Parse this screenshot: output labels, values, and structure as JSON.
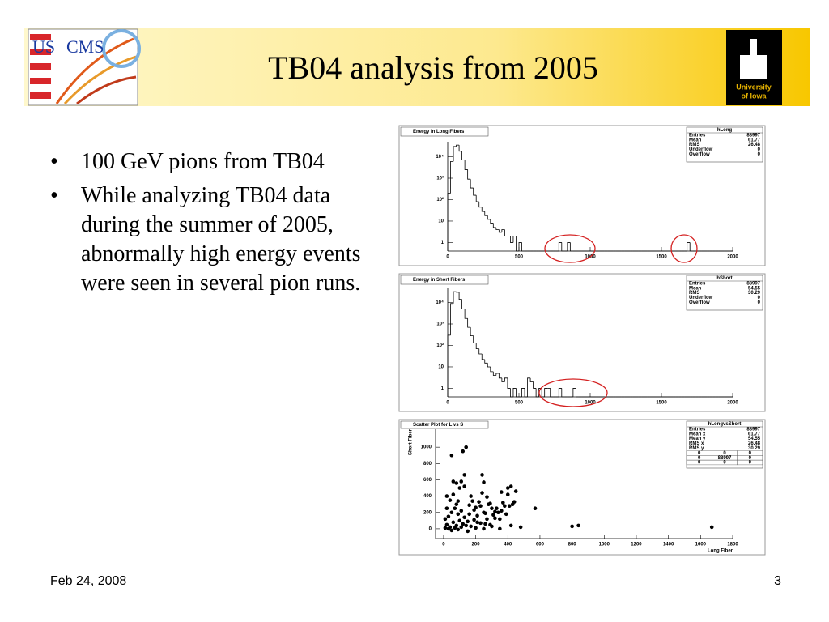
{
  "slide": {
    "title": "TB04 analysis from 2005",
    "bullets": [
      "100 GeV pions from TB04",
      "While analyzing TB04 data during the summer of 2005, abnormally high energy events were seen in several pion runs."
    ],
    "date": "Feb 24, 2008",
    "page": 3,
    "logo_left": [
      "US",
      "CMS"
    ],
    "logo_right": [
      "University",
      "of Iowa"
    ]
  },
  "chart_data": [
    {
      "type": "histogram",
      "title": "Energy in Long Fibers",
      "yscale": "log",
      "bins": [
        0,
        20,
        40,
        60,
        80,
        100,
        120,
        140,
        160,
        180,
        200,
        220,
        240,
        260,
        280,
        300,
        320,
        340,
        360,
        380,
        400,
        420,
        440,
        460,
        480,
        500,
        520,
        540,
        560,
        580,
        600,
        620,
        640,
        660,
        680,
        700,
        720,
        740,
        760,
        780,
        800,
        820,
        840,
        860,
        880,
        900,
        920,
        940,
        960,
        980,
        1000,
        1020,
        1040,
        1060,
        1080,
        1100,
        1120,
        1140,
        1160,
        1180,
        1200,
        1220,
        1240,
        1260,
        1280,
        1300,
        1320,
        1340,
        1360,
        1380,
        1400,
        1420,
        1440,
        1460,
        1480,
        1500,
        1520,
        1540,
        1560,
        1580,
        1600,
        1620,
        1640,
        1660,
        1680,
        1700,
        1720,
        1740,
        1760,
        1780,
        1800,
        1820,
        1840,
        1860,
        1880,
        1900,
        1920,
        1940,
        1960,
        1980,
        2000
      ],
      "counts": [
        200,
        6000,
        30000,
        35000,
        18000,
        7000,
        2500,
        900,
        350,
        160,
        80,
        45,
        28,
        18,
        12,
        8,
        5,
        4,
        3,
        4,
        2,
        2,
        1,
        2,
        0,
        1,
        0,
        0,
        0,
        0,
        0,
        0,
        0,
        0,
        0,
        0,
        0,
        0,
        0,
        1,
        0,
        0,
        1,
        0,
        0,
        0,
        0,
        0,
        0,
        0,
        0,
        0,
        0,
        0,
        0,
        0,
        0,
        0,
        0,
        0,
        0,
        0,
        0,
        0,
        0,
        0,
        0,
        0,
        0,
        0,
        0,
        0,
        0,
        0,
        0,
        0,
        0,
        0,
        0,
        0,
        0,
        0,
        0,
        0,
        1,
        0,
        0,
        0,
        0,
        0,
        0,
        0,
        0,
        0,
        0,
        0,
        0,
        0,
        0,
        0
      ],
      "color": "#000000",
      "xlim": [
        0,
        2000
      ],
      "xticks": [
        0,
        500,
        1000,
        1500,
        2000
      ],
      "ylim": [
        0.4,
        50000
      ],
      "yticks": [
        1,
        10,
        {
          "value": 100,
          "label": "10²"
        },
        {
          "value": 1000,
          "label": "10³"
        },
        {
          "value": 10000,
          "label": "10⁴"
        }
      ],
      "stats": {
        "name": "hLong",
        "rows": [
          [
            "Entries",
            88997
          ],
          [
            "Mean",
            61.77
          ],
          [
            "RMS",
            26.48
          ],
          [
            "Underflow",
            0
          ],
          [
            "Overflow",
            0
          ]
        ]
      }
    },
    {
      "type": "histogram",
      "title": "Energy in Short Fibers",
      "yscale": "log",
      "bins": [
        0,
        20,
        40,
        60,
        80,
        100,
        120,
        140,
        160,
        180,
        200,
        220,
        240,
        260,
        280,
        300,
        320,
        340,
        360,
        380,
        400,
        420,
        440,
        460,
        480,
        500,
        520,
        540,
        560,
        580,
        600,
        620,
        640,
        660,
        680,
        700,
        720,
        740,
        760,
        780,
        800,
        820,
        840,
        860,
        880,
        900,
        920,
        940,
        960,
        980,
        1000,
        1020,
        1040,
        1060,
        1080,
        1100,
        1120,
        1140,
        1160,
        1180,
        1200,
        1220,
        1240,
        1260,
        1280,
        1300,
        1320,
        1340,
        1360,
        1380,
        1400,
        1420,
        1440,
        1460,
        1480,
        1500,
        1520,
        1540,
        1560,
        1580,
        1600,
        1620,
        1640,
        1660,
        1680,
        1700,
        1720,
        1740,
        1760,
        1780,
        1800,
        1820,
        1840,
        1860,
        1880,
        1900,
        1920,
        1940,
        1960,
        1980,
        2000
      ],
      "counts": [
        300,
        9000,
        32000,
        30000,
        14000,
        5000,
        1800,
        700,
        280,
        130,
        70,
        40,
        22,
        15,
        10,
        6,
        4,
        5,
        3,
        2,
        3,
        1,
        0,
        1,
        0,
        0,
        1,
        0,
        3,
        2,
        1,
        0,
        1,
        0,
        1,
        1,
        0,
        0,
        0,
        1,
        0,
        0,
        0,
        0,
        1,
        0,
        0,
        0,
        0,
        0,
        0,
        0,
        0,
        0,
        0,
        0,
        0,
        0,
        0,
        0,
        0,
        0,
        0,
        0,
        0,
        0,
        0,
        0,
        0,
        0,
        0,
        0,
        0,
        0,
        0,
        0,
        0,
        0,
        0,
        0,
        0,
        0,
        0,
        0,
        0,
        0,
        0,
        0,
        0,
        0,
        0,
        0,
        0,
        0,
        0,
        0,
        0,
        0,
        0,
        0
      ],
      "color": "#000000",
      "xlim": [
        0,
        2000
      ],
      "xticks": [
        0,
        500,
        1000,
        1500,
        2000
      ],
      "ylim": [
        0.4,
        50000
      ],
      "yticks": [
        1,
        10,
        {
          "value": 100,
          "label": "10²"
        },
        {
          "value": 1000,
          "label": "10³"
        },
        {
          "value": 10000,
          "label": "10⁴"
        }
      ],
      "stats": {
        "name": "hShort",
        "rows": [
          [
            "Entries",
            88997
          ],
          [
            "Mean",
            54.55
          ],
          [
            "RMS",
            30.29
          ],
          [
            "Underflow",
            0
          ],
          [
            "Overflow",
            0
          ]
        ]
      }
    },
    {
      "type": "scatter",
      "title": "Scatter Plot for L vs S",
      "x_label": "Long Fiber",
      "y_label": "Short Fiber",
      "x": [
        20,
        40,
        60,
        80,
        100,
        120,
        30,
        50,
        70,
        90,
        110,
        130,
        150,
        170,
        190,
        210,
        230,
        250,
        270,
        290,
        310,
        330,
        350,
        370,
        390,
        40,
        60,
        80,
        100,
        60,
        80,
        110,
        130,
        20,
        130,
        50,
        140,
        120,
        160,
        180,
        200,
        220,
        240,
        260,
        280,
        300,
        320,
        340,
        360,
        380,
        400,
        420,
        430,
        440,
        450,
        240,
        250,
        270,
        290,
        360,
        400,
        410,
        570,
        800,
        840,
        1670,
        10,
        30,
        50,
        70,
        90,
        110,
        150,
        200,
        250,
        300,
        350,
        420,
        480,
        10,
        140,
        160,
        190,
        210,
        230,
        260,
        20,
        90,
        170,
        320
      ],
      "y": [
        50,
        20,
        80,
        40,
        100,
        60,
        150,
        200,
        250,
        180,
        220,
        140,
        90,
        30,
        110,
        160,
        70,
        200,
        120,
        50,
        170,
        250,
        120,
        320,
        180,
        350,
        420,
        300,
        500,
        580,
        560,
        580,
        660,
        400,
        520,
        900,
        1000,
        950,
        290,
        340,
        260,
        330,
        440,
        190,
        300,
        250,
        210,
        200,
        220,
        280,
        500,
        520,
        300,
        330,
        460,
        660,
        570,
        390,
        310,
        450,
        420,
        280,
        250,
        30,
        40,
        20,
        10,
        0,
        -20,
        10,
        -10,
        20,
        -30,
        10,
        0,
        30,
        0,
        40,
        20,
        120,
        40,
        180,
        230,
        80,
        280,
        60,
        250,
        340,
        400,
        130
      ],
      "color": "#000000",
      "xlim": [
        -50,
        1800
      ],
      "xticks": [
        0,
        200,
        400,
        600,
        800,
        1000,
        1200,
        1400,
        1600,
        1800
      ],
      "ylim": [
        -120,
        1220
      ],
      "yticks": [
        0,
        200,
        400,
        600,
        800,
        1000
      ],
      "stats": {
        "name": "hLongvsShort",
        "rows": [
          [
            "Entries",
            88997
          ],
          [
            "Mean x",
            61.77
          ],
          [
            "Mean y",
            54.55
          ],
          [
            "RMS x",
            26.48
          ],
          [
            "RMS y",
            30.29
          ]
        ],
        "matrix": [
          [
            0,
            0,
            0
          ],
          [
            0,
            88997,
            0
          ],
          [
            0,
            0,
            0
          ]
        ]
      }
    }
  ]
}
